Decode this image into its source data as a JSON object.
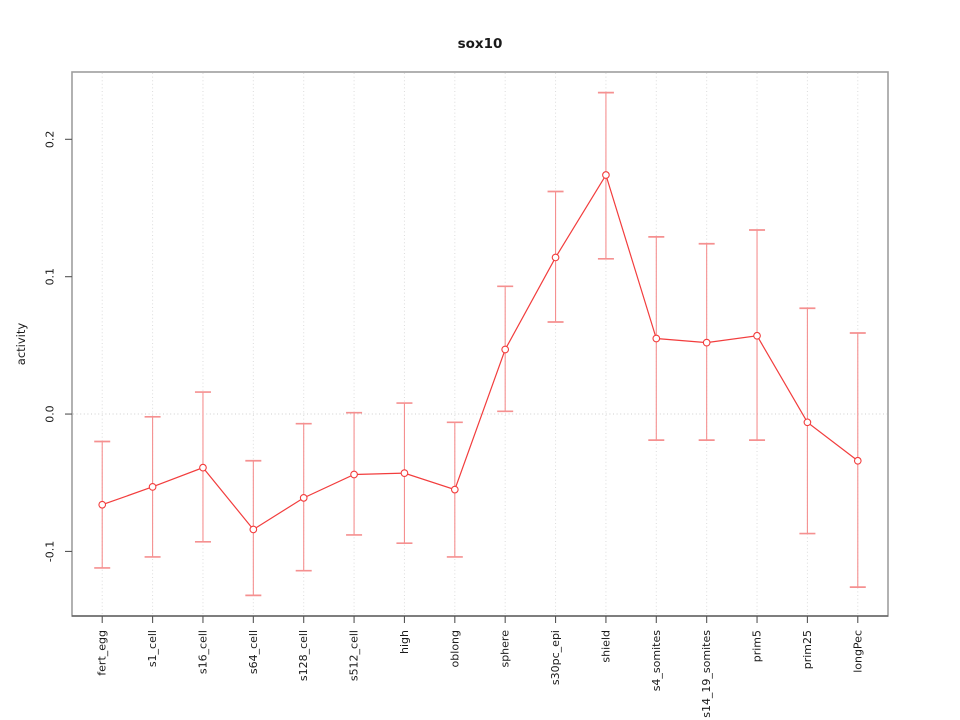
{
  "figure": {
    "title": "sox10",
    "ylabel": "activity",
    "xlabel": ""
  },
  "chart_data": {
    "type": "line",
    "title": "sox10",
    "xlabel": "",
    "ylabel": "activity",
    "categories": [
      "fert_egg",
      "s1_cell",
      "s16_cell",
      "s64_cell",
      "s128_cell",
      "s512_cell",
      "high",
      "oblong",
      "sphere",
      "s30pc_epi",
      "shield",
      "s4_somites",
      "s14_19_somites",
      "prim5",
      "prim25",
      "longPec"
    ],
    "series": [
      {
        "name": "activity",
        "values": [
          -0.066,
          -0.053,
          -0.039,
          -0.084,
          -0.061,
          -0.044,
          -0.043,
          -0.055,
          0.047,
          0.114,
          0.174,
          0.055,
          0.052,
          0.057,
          -0.006,
          -0.034
        ],
        "upper": [
          -0.02,
          -0.002,
          0.016,
          -0.034,
          -0.007,
          0.001,
          0.008,
          -0.006,
          0.093,
          0.162,
          0.234,
          0.129,
          0.124,
          0.134,
          0.077,
          0.059
        ],
        "lower": [
          -0.112,
          -0.104,
          -0.093,
          -0.132,
          -0.114,
          -0.088,
          -0.094,
          -0.104,
          0.002,
          0.067,
          0.113,
          -0.019,
          -0.019,
          -0.019,
          -0.087,
          -0.126
        ]
      }
    ],
    "ylim": [
      -0.147,
      0.249
    ],
    "yticks": [
      -0.1,
      0.0,
      0.1,
      0.2
    ],
    "ytick_labels": [
      "-0.1",
      "0.0",
      "0.1",
      "0.2"
    ],
    "marker": "open-circle",
    "line_style": "solid",
    "error_bars": true,
    "grid": "vertical-dotted-per-category-plus-dotted-zero-line",
    "legend": "none",
    "colors": {
      "line": "#f23d3d",
      "marker": "#f23d3d",
      "error_bar": "#f59090",
      "grid": "#dcdcdc",
      "zero_line": "#cfcfcf",
      "box": "#9e9e9e",
      "axis": "#555555",
      "text": "#1a1a1a",
      "background": "#ffffff"
    }
  }
}
